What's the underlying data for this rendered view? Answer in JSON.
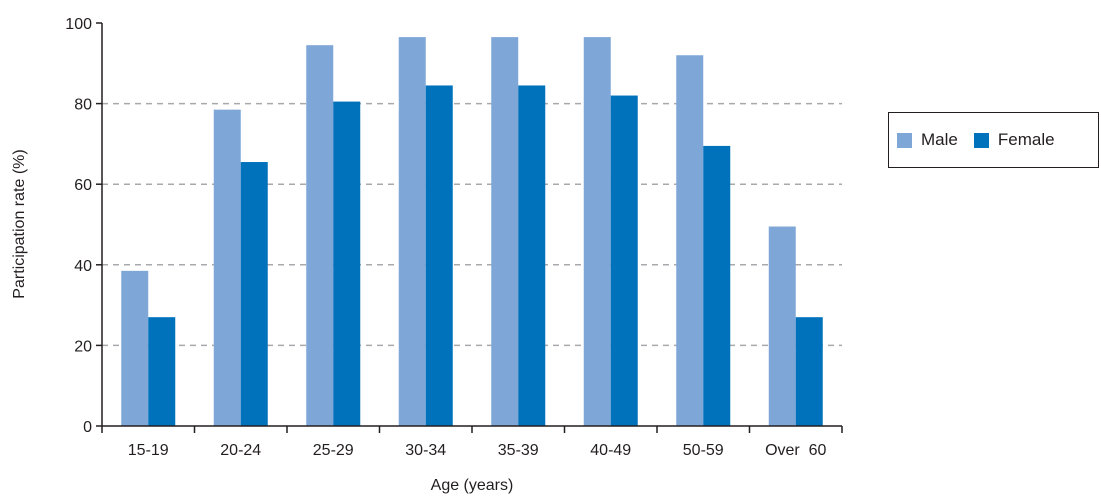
{
  "chart_data": {
    "type": "bar",
    "categories": [
      "15-19",
      "20-24",
      "25-29",
      "30-34",
      "35-39",
      "40-49",
      "50-59",
      "Over  60"
    ],
    "series": [
      {
        "name": "Male",
        "color": "#7ea7d8",
        "values": [
          38.5,
          78.5,
          94.5,
          96.5,
          96.5,
          96.5,
          92,
          49.5
        ]
      },
      {
        "name": "Female",
        "color": "#0072bc",
        "values": [
          27,
          65.5,
          80.5,
          84.5,
          84.5,
          82,
          69.5,
          27
        ]
      }
    ],
    "xlabel": "Age (years)",
    "ylabel": "Participation rate (%)",
    "ylim": [
      0,
      100
    ],
    "yticks": [
      0,
      20,
      40,
      60,
      80,
      100
    ],
    "grid": true,
    "legend": "right"
  }
}
